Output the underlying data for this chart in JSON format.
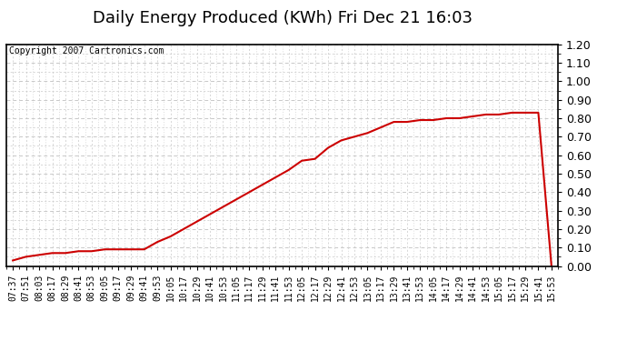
{
  "title": "Daily Energy Produced (KWh) Fri Dec 21 16:03",
  "copyright_text": "Copyright 2007 Cartronics.com",
  "line_color": "#cc0000",
  "background_color": "#ffffff",
  "grid_color": "#c8c8c8",
  "ylim": [
    0.0,
    1.2
  ],
  "yticks": [
    0.0,
    0.1,
    0.2,
    0.3,
    0.4,
    0.5,
    0.6,
    0.7,
    0.8,
    0.9,
    1.0,
    1.1,
    1.2
  ],
  "x_labels": [
    "07:37",
    "07:51",
    "08:03",
    "08:17",
    "08:29",
    "08:41",
    "08:53",
    "09:05",
    "09:17",
    "09:29",
    "09:41",
    "09:53",
    "10:05",
    "10:17",
    "10:29",
    "10:41",
    "10:53",
    "11:05",
    "11:17",
    "11:29",
    "11:41",
    "11:53",
    "12:05",
    "12:17",
    "12:29",
    "12:41",
    "12:53",
    "13:05",
    "13:17",
    "13:29",
    "13:41",
    "13:53",
    "14:05",
    "14:17",
    "14:29",
    "14:41",
    "14:53",
    "15:05",
    "15:17",
    "15:29",
    "15:41",
    "15:53"
  ],
  "y_values": [
    0.03,
    0.05,
    0.06,
    0.07,
    0.07,
    0.08,
    0.08,
    0.09,
    0.09,
    0.09,
    0.09,
    0.13,
    0.16,
    0.2,
    0.24,
    0.28,
    0.32,
    0.36,
    0.4,
    0.44,
    0.48,
    0.52,
    0.57,
    0.58,
    0.64,
    0.68,
    0.7,
    0.72,
    0.75,
    0.78,
    0.78,
    0.79,
    0.79,
    0.8,
    0.8,
    0.81,
    0.82,
    0.82,
    0.83,
    0.83,
    0.83,
    0.0
  ],
  "title_fontsize": 13,
  "copyright_fontsize": 7,
  "ylabel_fontsize": 9,
  "xlabel_fontsize": 7
}
